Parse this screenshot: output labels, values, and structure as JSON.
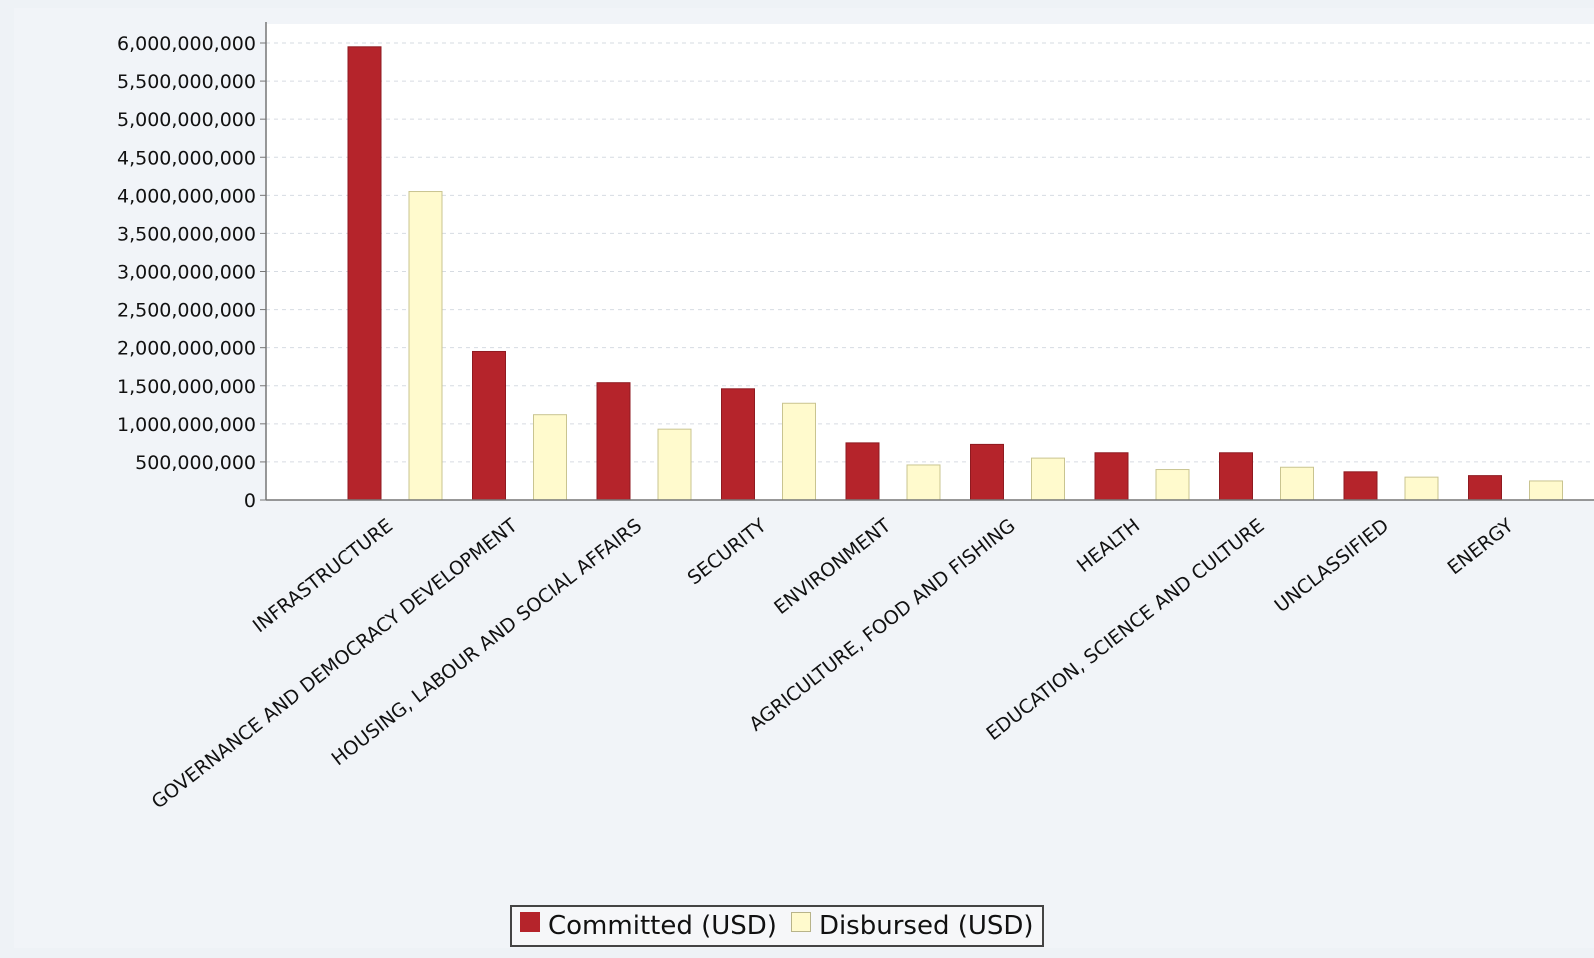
{
  "chart_data": {
    "type": "bar",
    "categories": [
      "INFRASTRUCTURE",
      "GOVERNANCE AND DEMOCRACY DEVELOPMENT",
      "HOUSING, LABOUR AND SOCIAL AFFAIRS",
      "SECURITY",
      "ENVIRONMENT",
      "AGRICULTURE, FOOD AND FISHING",
      "HEALTH",
      "EDUCATION, SCIENCE AND CULTURE",
      "UNCLASSIFIED",
      "ENERGY"
    ],
    "series": [
      {
        "name": "Committed (USD)",
        "color": "#b5242b",
        "values": [
          5950000000,
          1950000000,
          1540000000,
          1460000000,
          750000000,
          730000000,
          620000000,
          620000000,
          370000000,
          320000000
        ]
      },
      {
        "name": "Disbursed (USD)",
        "color": "#fffacd",
        "values": [
          4050000000,
          1120000000,
          930000000,
          1270000000,
          460000000,
          550000000,
          400000000,
          430000000,
          300000000,
          250000000
        ]
      }
    ],
    "yticks": [
      "0",
      "500,000,000",
      "1,000,000,000",
      "1,500,000,000",
      "2,000,000,000",
      "2,500,000,000",
      "3,000,000,000",
      "3,500,000,000",
      "4,000,000,000",
      "4,500,000,000",
      "5,000,000,000",
      "5,500,000,000",
      "6,000,000,000"
    ],
    "ylim": [
      0,
      6250000000
    ],
    "grid": true,
    "legend_position": "bottom-center"
  }
}
